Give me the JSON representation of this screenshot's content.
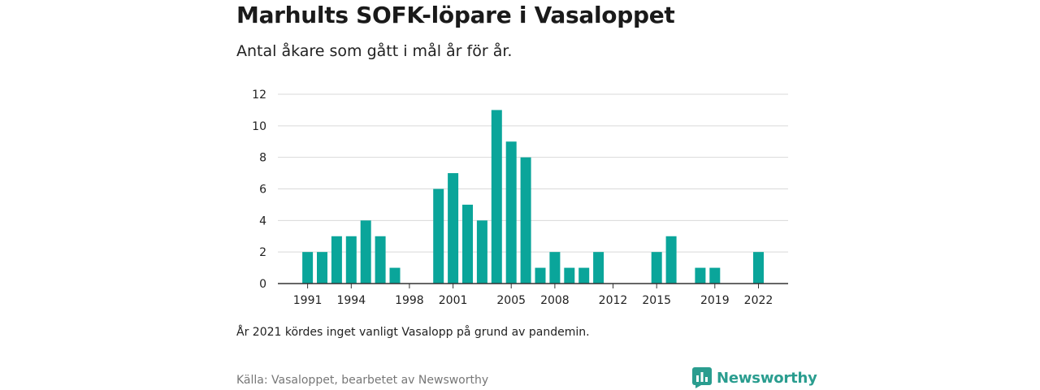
{
  "header": {
    "title": "Marhults SOFK-löpare i Vasaloppet",
    "subtitle": "Antal åkare som gått i mål år för år."
  },
  "footer": {
    "note": "År 2021 kördes inget vanligt Vasalopp på grund av pandemin.",
    "source": "Källa: Vasaloppet, bearbetet av Newsworthy",
    "brand": "Newsworthy"
  },
  "colors": {
    "bar": "#0aa59a",
    "grid": "#d9d9d9",
    "axis": "#333333",
    "brand": "#2a9d8f"
  },
  "chart_data": {
    "type": "bar",
    "title": "Marhults SOFK-löpare i Vasaloppet",
    "subtitle": "Antal åkare som gått i mål år för år.",
    "xlabel": "",
    "ylabel": "",
    "ylim": [
      0,
      12
    ],
    "yticks": [
      0,
      2,
      4,
      6,
      8,
      10,
      12
    ],
    "xtick_labels": [
      "1991",
      "1994",
      "1998",
      "2001",
      "2005",
      "2008",
      "2012",
      "2015",
      "2019",
      "2022"
    ],
    "grid": true,
    "legend": "none",
    "x": [
      1991,
      1992,
      1993,
      1994,
      1995,
      1996,
      1997,
      1998,
      1999,
      2000,
      2001,
      2002,
      2003,
      2004,
      2005,
      2006,
      2007,
      2008,
      2009,
      2010,
      2011,
      2012,
      2013,
      2014,
      2015,
      2016,
      2017,
      2018,
      2019,
      2020,
      2021,
      2022
    ],
    "values": [
      2,
      2,
      3,
      3,
      4,
      3,
      1,
      0,
      0,
      6,
      7,
      5,
      4,
      11,
      9,
      8,
      1,
      2,
      1,
      1,
      2,
      0,
      0,
      0,
      2,
      3,
      0,
      1,
      1,
      0,
      0,
      2
    ]
  }
}
